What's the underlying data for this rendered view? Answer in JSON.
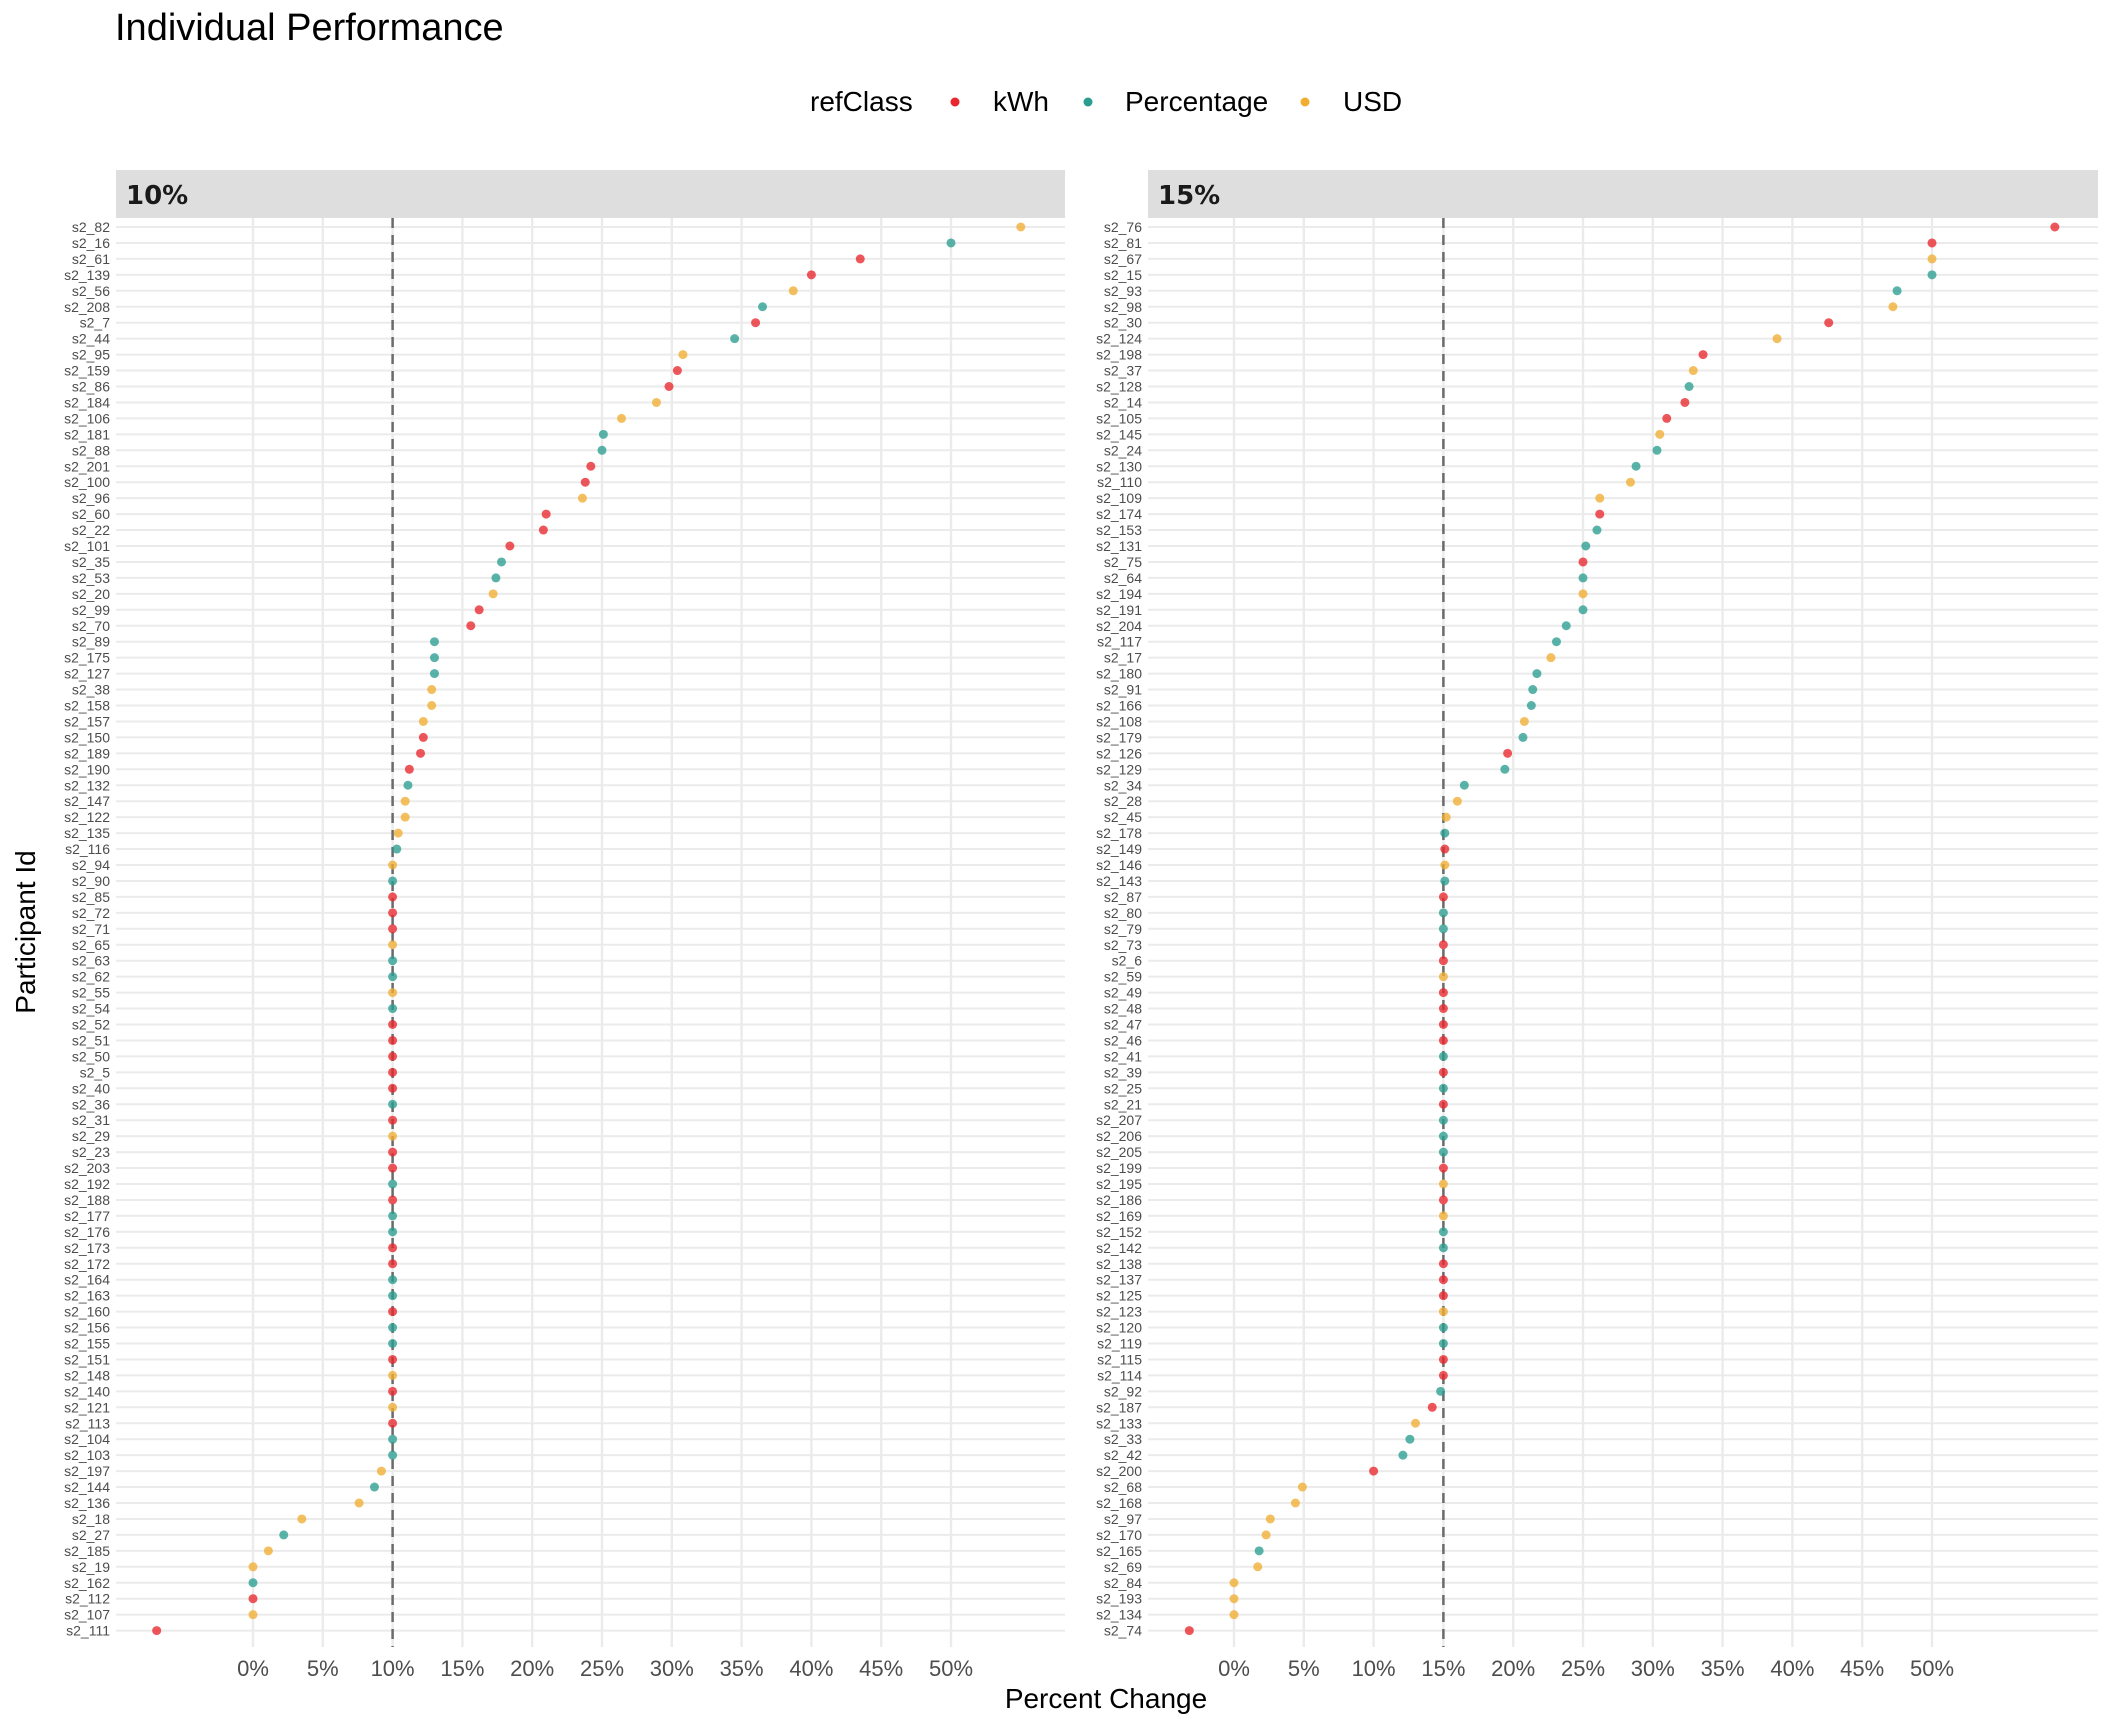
{
  "chart_data": {
    "type": "scatter",
    "title": "Individual Performance",
    "xlabel": "Percent Change",
    "ylabel": "Participant Id",
    "legend": {
      "title": "refClass",
      "placement": "top",
      "entries": [
        {
          "name": "kWh",
          "color": "#e8262b"
        },
        {
          "name": "Percentage",
          "color": "#2a9d8f"
        },
        {
          "name": "USD",
          "color": "#f0ad32"
        }
      ]
    },
    "xticks": [
      0,
      5,
      10,
      15,
      20,
      25,
      30,
      35,
      40,
      45,
      50
    ],
    "xtick_labels": [
      "0%",
      "5%",
      "10%",
      "15%",
      "20%",
      "25%",
      "30%",
      "35%",
      "40%",
      "45%",
      "50%"
    ],
    "xlim": [
      -9,
      59
    ],
    "grid": true,
    "panels": [
      {
        "label": "10%",
        "reference_line": 10,
        "points": [
          [
            "s2_82",
            55,
            "USD"
          ],
          [
            "s2_16",
            50,
            "Percentage"
          ],
          [
            "s2_61",
            43.5,
            "kWh"
          ],
          [
            "s2_139",
            40,
            "kWh"
          ],
          [
            "s2_56",
            38.7,
            "USD"
          ],
          [
            "s2_208",
            36.5,
            "Percentage"
          ],
          [
            "s2_7",
            36,
            "kWh"
          ],
          [
            "s2_44",
            34.5,
            "Percentage"
          ],
          [
            "s2_95",
            30.8,
            "USD"
          ],
          [
            "s2_159",
            30.4,
            "kWh"
          ],
          [
            "s2_86",
            29.8,
            "kWh"
          ],
          [
            "s2_184",
            28.9,
            "USD"
          ],
          [
            "s2_106",
            26.4,
            "USD"
          ],
          [
            "s2_181",
            25.1,
            "Percentage"
          ],
          [
            "s2_88",
            25,
            "Percentage"
          ],
          [
            "s2_201",
            24.2,
            "kWh"
          ],
          [
            "s2_100",
            23.8,
            "kWh"
          ],
          [
            "s2_96",
            23.6,
            "USD"
          ],
          [
            "s2_60",
            21,
            "kWh"
          ],
          [
            "s2_22",
            20.8,
            "kWh"
          ],
          [
            "s2_101",
            18.4,
            "kWh"
          ],
          [
            "s2_35",
            17.8,
            "Percentage"
          ],
          [
            "s2_53",
            17.4,
            "Percentage"
          ],
          [
            "s2_20",
            17.2,
            "USD"
          ],
          [
            "s2_99",
            16.2,
            "kWh"
          ],
          [
            "s2_70",
            15.6,
            "kWh"
          ],
          [
            "s2_89",
            13,
            "Percentage"
          ],
          [
            "s2_175",
            13,
            "Percentage"
          ],
          [
            "s2_127",
            13,
            "Percentage"
          ],
          [
            "s2_38",
            12.8,
            "USD"
          ],
          [
            "s2_158",
            12.8,
            "USD"
          ],
          [
            "s2_157",
            12.2,
            "USD"
          ],
          [
            "s2_150",
            12.2,
            "kWh"
          ],
          [
            "s2_189",
            12,
            "kWh"
          ],
          [
            "s2_190",
            11.2,
            "kWh"
          ],
          [
            "s2_132",
            11.1,
            "Percentage"
          ],
          [
            "s2_147",
            10.9,
            "USD"
          ],
          [
            "s2_122",
            10.9,
            "USD"
          ],
          [
            "s2_135",
            10.4,
            "USD"
          ],
          [
            "s2_116",
            10.3,
            "Percentage"
          ],
          [
            "s2_94",
            10,
            "USD"
          ],
          [
            "s2_90",
            10,
            "Percentage"
          ],
          [
            "s2_85",
            10,
            "kWh"
          ],
          [
            "s2_72",
            10,
            "kWh"
          ],
          [
            "s2_71",
            10,
            "kWh"
          ],
          [
            "s2_65",
            10,
            "USD"
          ],
          [
            "s2_63",
            10,
            "Percentage"
          ],
          [
            "s2_62",
            10,
            "Percentage"
          ],
          [
            "s2_55",
            10,
            "USD"
          ],
          [
            "s2_54",
            10,
            "Percentage"
          ],
          [
            "s2_52",
            10,
            "kWh"
          ],
          [
            "s2_51",
            10,
            "kWh"
          ],
          [
            "s2_50",
            10,
            "kWh"
          ],
          [
            "s2_5",
            10,
            "kWh"
          ],
          [
            "s2_40",
            10,
            "kWh"
          ],
          [
            "s2_36",
            10,
            "Percentage"
          ],
          [
            "s2_31",
            10,
            "kWh"
          ],
          [
            "s2_29",
            10,
            "USD"
          ],
          [
            "s2_23",
            10,
            "kWh"
          ],
          [
            "s2_203",
            10,
            "kWh"
          ],
          [
            "s2_192",
            10,
            "Percentage"
          ],
          [
            "s2_188",
            10,
            "kWh"
          ],
          [
            "s2_177",
            10,
            "Percentage"
          ],
          [
            "s2_176",
            10,
            "Percentage"
          ],
          [
            "s2_173",
            10,
            "kWh"
          ],
          [
            "s2_172",
            10,
            "kWh"
          ],
          [
            "s2_164",
            10,
            "Percentage"
          ],
          [
            "s2_163",
            10,
            "Percentage"
          ],
          [
            "s2_160",
            10,
            "kWh"
          ],
          [
            "s2_156",
            10,
            "Percentage"
          ],
          [
            "s2_155",
            10,
            "Percentage"
          ],
          [
            "s2_151",
            10,
            "kWh"
          ],
          [
            "s2_148",
            10,
            "USD"
          ],
          [
            "s2_140",
            10,
            "kWh"
          ],
          [
            "s2_121",
            10,
            "USD"
          ],
          [
            "s2_113",
            10,
            "kWh"
          ],
          [
            "s2_104",
            10,
            "Percentage"
          ],
          [
            "s2_103",
            10,
            "Percentage"
          ],
          [
            "s2_197",
            9.2,
            "USD"
          ],
          [
            "s2_144",
            8.7,
            "Percentage"
          ],
          [
            "s2_136",
            7.6,
            "USD"
          ],
          [
            "s2_18",
            3.5,
            "USD"
          ],
          [
            "s2_27",
            2.2,
            "Percentage"
          ],
          [
            "s2_185",
            1.1,
            "USD"
          ],
          [
            "s2_19",
            0,
            "USD"
          ],
          [
            "s2_162",
            0,
            "Percentage"
          ],
          [
            "s2_112",
            0,
            "kWh"
          ],
          [
            "s2_107",
            0,
            "USD"
          ],
          [
            "s2_111",
            -6.9,
            "kWh"
          ]
        ]
      },
      {
        "label": "15%",
        "reference_line": 15,
        "points": [
          [
            "s2_76",
            58.8,
            "kWh"
          ],
          [
            "s2_81",
            50,
            "kWh"
          ],
          [
            "s2_67",
            50,
            "USD"
          ],
          [
            "s2_15",
            50,
            "Percentage"
          ],
          [
            "s2_93",
            47.5,
            "Percentage"
          ],
          [
            "s2_98",
            47.2,
            "USD"
          ],
          [
            "s2_30",
            42.6,
            "kWh"
          ],
          [
            "s2_124",
            38.9,
            "USD"
          ],
          [
            "s2_198",
            33.6,
            "kWh"
          ],
          [
            "s2_37",
            32.9,
            "USD"
          ],
          [
            "s2_128",
            32.6,
            "Percentage"
          ],
          [
            "s2_14",
            32.3,
            "kWh"
          ],
          [
            "s2_105",
            31,
            "kWh"
          ],
          [
            "s2_145",
            30.5,
            "USD"
          ],
          [
            "s2_24",
            30.3,
            "Percentage"
          ],
          [
            "s2_130",
            28.8,
            "Percentage"
          ],
          [
            "s2_110",
            28.4,
            "USD"
          ],
          [
            "s2_109",
            26.2,
            "USD"
          ],
          [
            "s2_174",
            26.2,
            "kWh"
          ],
          [
            "s2_153",
            26,
            "Percentage"
          ],
          [
            "s2_131",
            25.2,
            "Percentage"
          ],
          [
            "s2_75",
            25,
            "kWh"
          ],
          [
            "s2_64",
            25,
            "Percentage"
          ],
          [
            "s2_194",
            25,
            "USD"
          ],
          [
            "s2_191",
            25,
            "Percentage"
          ],
          [
            "s2_204",
            23.8,
            "Percentage"
          ],
          [
            "s2_117",
            23.1,
            "Percentage"
          ],
          [
            "s2_17",
            22.7,
            "USD"
          ],
          [
            "s2_180",
            21.7,
            "Percentage"
          ],
          [
            "s2_91",
            21.4,
            "Percentage"
          ],
          [
            "s2_166",
            21.3,
            "Percentage"
          ],
          [
            "s2_108",
            20.8,
            "USD"
          ],
          [
            "s2_179",
            20.7,
            "Percentage"
          ],
          [
            "s2_126",
            19.6,
            "kWh"
          ],
          [
            "s2_129",
            19.4,
            "Percentage"
          ],
          [
            "s2_34",
            16.5,
            "Percentage"
          ],
          [
            "s2_28",
            16,
            "USD"
          ],
          [
            "s2_45",
            15.2,
            "USD"
          ],
          [
            "s2_178",
            15.1,
            "Percentage"
          ],
          [
            "s2_149",
            15.1,
            "kWh"
          ],
          [
            "s2_146",
            15.1,
            "USD"
          ],
          [
            "s2_143",
            15.1,
            "Percentage"
          ],
          [
            "s2_87",
            15,
            "kWh"
          ],
          [
            "s2_80",
            15,
            "Percentage"
          ],
          [
            "s2_79",
            15,
            "Percentage"
          ],
          [
            "s2_73",
            15,
            "kWh"
          ],
          [
            "s2_6",
            15,
            "kWh"
          ],
          [
            "s2_59",
            15,
            "USD"
          ],
          [
            "s2_49",
            15,
            "kWh"
          ],
          [
            "s2_48",
            15,
            "kWh"
          ],
          [
            "s2_47",
            15,
            "kWh"
          ],
          [
            "s2_46",
            15,
            "kWh"
          ],
          [
            "s2_41",
            15,
            "Percentage"
          ],
          [
            "s2_39",
            15,
            "kWh"
          ],
          [
            "s2_25",
            15,
            "Percentage"
          ],
          [
            "s2_21",
            15,
            "kWh"
          ],
          [
            "s2_207",
            15,
            "Percentage"
          ],
          [
            "s2_206",
            15,
            "Percentage"
          ],
          [
            "s2_205",
            15,
            "Percentage"
          ],
          [
            "s2_199",
            15,
            "kWh"
          ],
          [
            "s2_195",
            15,
            "USD"
          ],
          [
            "s2_186",
            15,
            "kWh"
          ],
          [
            "s2_169",
            15,
            "USD"
          ],
          [
            "s2_152",
            15,
            "Percentage"
          ],
          [
            "s2_142",
            15,
            "Percentage"
          ],
          [
            "s2_138",
            15,
            "kWh"
          ],
          [
            "s2_137",
            15,
            "kWh"
          ],
          [
            "s2_125",
            15,
            "kWh"
          ],
          [
            "s2_123",
            15,
            "USD"
          ],
          [
            "s2_120",
            15,
            "Percentage"
          ],
          [
            "s2_119",
            15,
            "Percentage"
          ],
          [
            "s2_115",
            15,
            "kWh"
          ],
          [
            "s2_114",
            15,
            "kWh"
          ],
          [
            "s2_92",
            14.8,
            "Percentage"
          ],
          [
            "s2_187",
            14.2,
            "kWh"
          ],
          [
            "s2_133",
            13,
            "USD"
          ],
          [
            "s2_33",
            12.6,
            "Percentage"
          ],
          [
            "s2_42",
            12.1,
            "Percentage"
          ],
          [
            "s2_200",
            10,
            "kWh"
          ],
          [
            "s2_68",
            4.9,
            "USD"
          ],
          [
            "s2_168",
            4.4,
            "USD"
          ],
          [
            "s2_97",
            2.6,
            "USD"
          ],
          [
            "s2_170",
            2.3,
            "USD"
          ],
          [
            "s2_165",
            1.8,
            "Percentage"
          ],
          [
            "s2_69",
            1.7,
            "USD"
          ],
          [
            "s2_84",
            0,
            "USD"
          ],
          [
            "s2_193",
            0,
            "USD"
          ],
          [
            "s2_134",
            0,
            "USD"
          ],
          [
            "s2_74",
            -3.2,
            "kWh"
          ]
        ]
      }
    ]
  }
}
